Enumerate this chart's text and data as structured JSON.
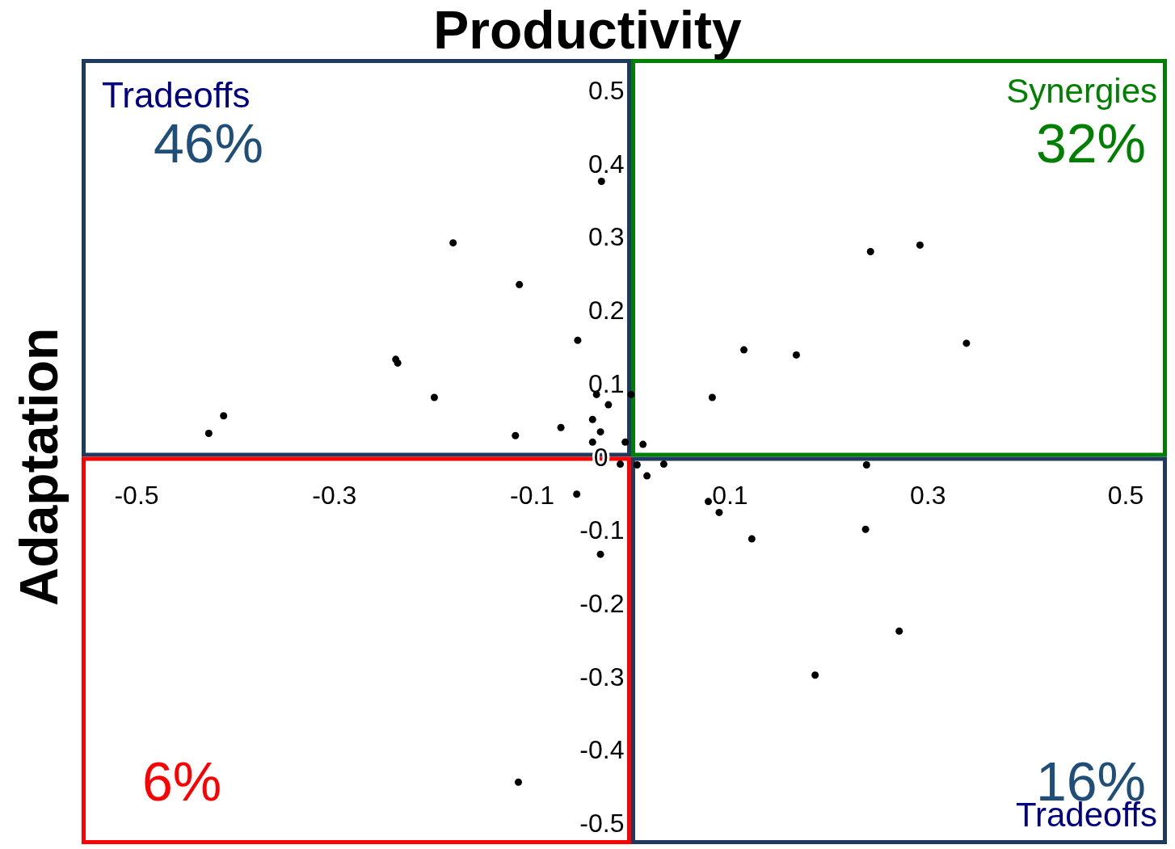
{
  "chart_data": {
    "type": "scatter",
    "xlabel": "Productivity",
    "ylabel": "Adaptation",
    "xlim": [
      -0.5,
      0.5
    ],
    "ylim": [
      -0.5,
      0.5
    ],
    "xticks": [
      -0.5,
      -0.3,
      -0.1,
      0.1,
      0.3,
      0.5
    ],
    "yticks": [
      -0.5,
      -0.4,
      -0.3,
      -0.2,
      -0.1,
      0,
      0.1,
      0.2,
      0.3,
      0.4,
      0.5
    ],
    "marker": "circle",
    "series": [
      {
        "color": "#000000",
        "x": [
          -0.03,
          -0.18,
          -0.113,
          -0.054,
          -0.238,
          -0.236,
          -0.199,
          -0.412,
          -0.427,
          -0.117,
          -0.071,
          -0.039,
          -0.031,
          -0.039,
          -0.035,
          -0.023,
          0.0,
          -0.006,
          0.012,
          -0.011,
          0.006,
          0.033,
          0.016,
          -0.055,
          -0.031,
          -0.114,
          0.082,
          0.114,
          0.167,
          0.242,
          0.292,
          0.339,
          0.238,
          0.078,
          0.089,
          0.122,
          0.237,
          0.271,
          0.186
        ],
        "values": [
          0.376,
          0.292,
          0.235,
          0.159,
          0.133,
          0.128,
          0.081,
          0.056,
          0.032,
          0.029,
          0.04,
          0.051,
          0.034,
          0.02,
          0.085,
          0.071,
          0.085,
          0.02,
          0.017,
          -0.01,
          -0.011,
          -0.01,
          -0.026,
          -0.051,
          -0.133,
          -0.444,
          0.081,
          0.146,
          0.139,
          0.28,
          0.289,
          0.155,
          -0.011,
          -0.061,
          -0.076,
          -0.112,
          -0.099,
          -0.238,
          -0.298
        ]
      }
    ],
    "annotations": [
      "Tradeoffs",
      "46%",
      "Synergies",
      "32%",
      "6%",
      "16%",
      "Tradeoffs"
    ]
  }
}
